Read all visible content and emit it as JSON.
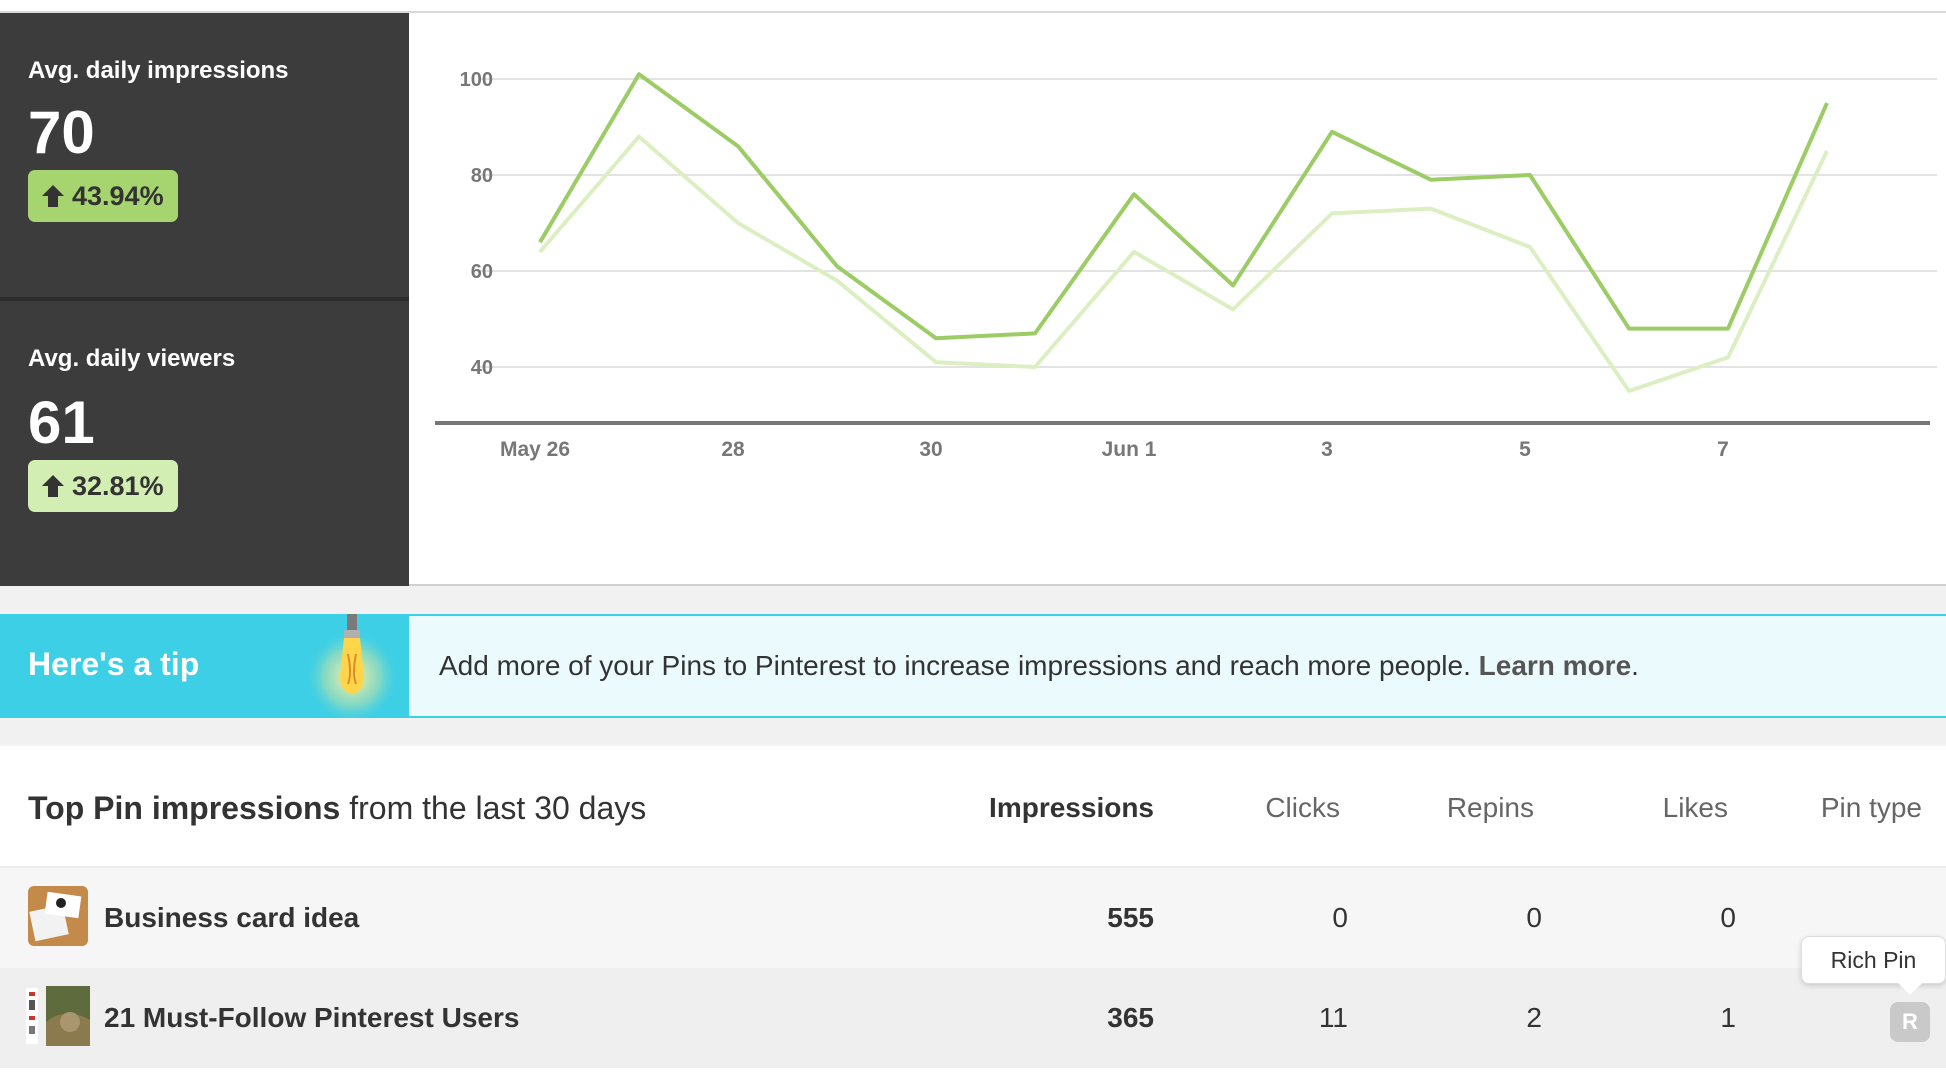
{
  "stats": {
    "impressions": {
      "label": "Avg. daily impressions",
      "value": "70",
      "change": "43.94%"
    },
    "viewers": {
      "label": "Avg. daily viewers",
      "value": "61",
      "change": "32.81%"
    }
  },
  "colors": {
    "panel_bg": "#3c3c3c",
    "impressions_line": "#9ccc65",
    "viewers_line": "#dcefc3",
    "tip_accent": "#3ccfe6"
  },
  "chart_data": {
    "type": "line",
    "categories": [
      "May 26",
      "May 27",
      "May 28",
      "May 29",
      "May 30",
      "May 31",
      "Jun 1",
      "Jun 2",
      "Jun 3",
      "Jun 4",
      "Jun 5",
      "Jun 6",
      "Jun 7",
      "Jun 8"
    ],
    "x_tick_labels": [
      "May 26",
      "28",
      "30",
      "Jun 1",
      "3",
      "5",
      "7"
    ],
    "y_ticks": [
      40,
      60,
      80,
      100
    ],
    "ylim": [
      28,
      105
    ],
    "grid": true,
    "series": [
      {
        "values": [
          66,
          101,
          86,
          61,
          46,
          47,
          76,
          57,
          89,
          79,
          80,
          48,
          48,
          95
        ]
      },
      {
        "values": [
          64,
          88,
          70,
          58,
          41,
          40,
          64,
          52,
          72,
          73,
          65,
          35,
          42,
          85
        ]
      }
    ]
  },
  "tip": {
    "title": "Here's a tip",
    "text": "Add more of your Pins to Pinterest to increase impressions and reach more people. ",
    "link": "Learn more",
    "end": "."
  },
  "table": {
    "title_bold": "Top Pin impressions",
    "title_rest": " from the last 30 days",
    "columns": [
      "Impressions",
      "Clicks",
      "Repins",
      "Likes",
      "Pin type"
    ],
    "rows": [
      {
        "name": "Business card idea",
        "impressions": "555",
        "clicks": "0",
        "repins": "0",
        "likes": "0",
        "pin_type": ""
      },
      {
        "name": "21 Must-Follow Pinterest Users",
        "impressions": "365",
        "clicks": "11",
        "repins": "2",
        "likes": "1",
        "pin_type": "R"
      }
    ]
  },
  "tooltip": {
    "text": "Rich Pin"
  }
}
